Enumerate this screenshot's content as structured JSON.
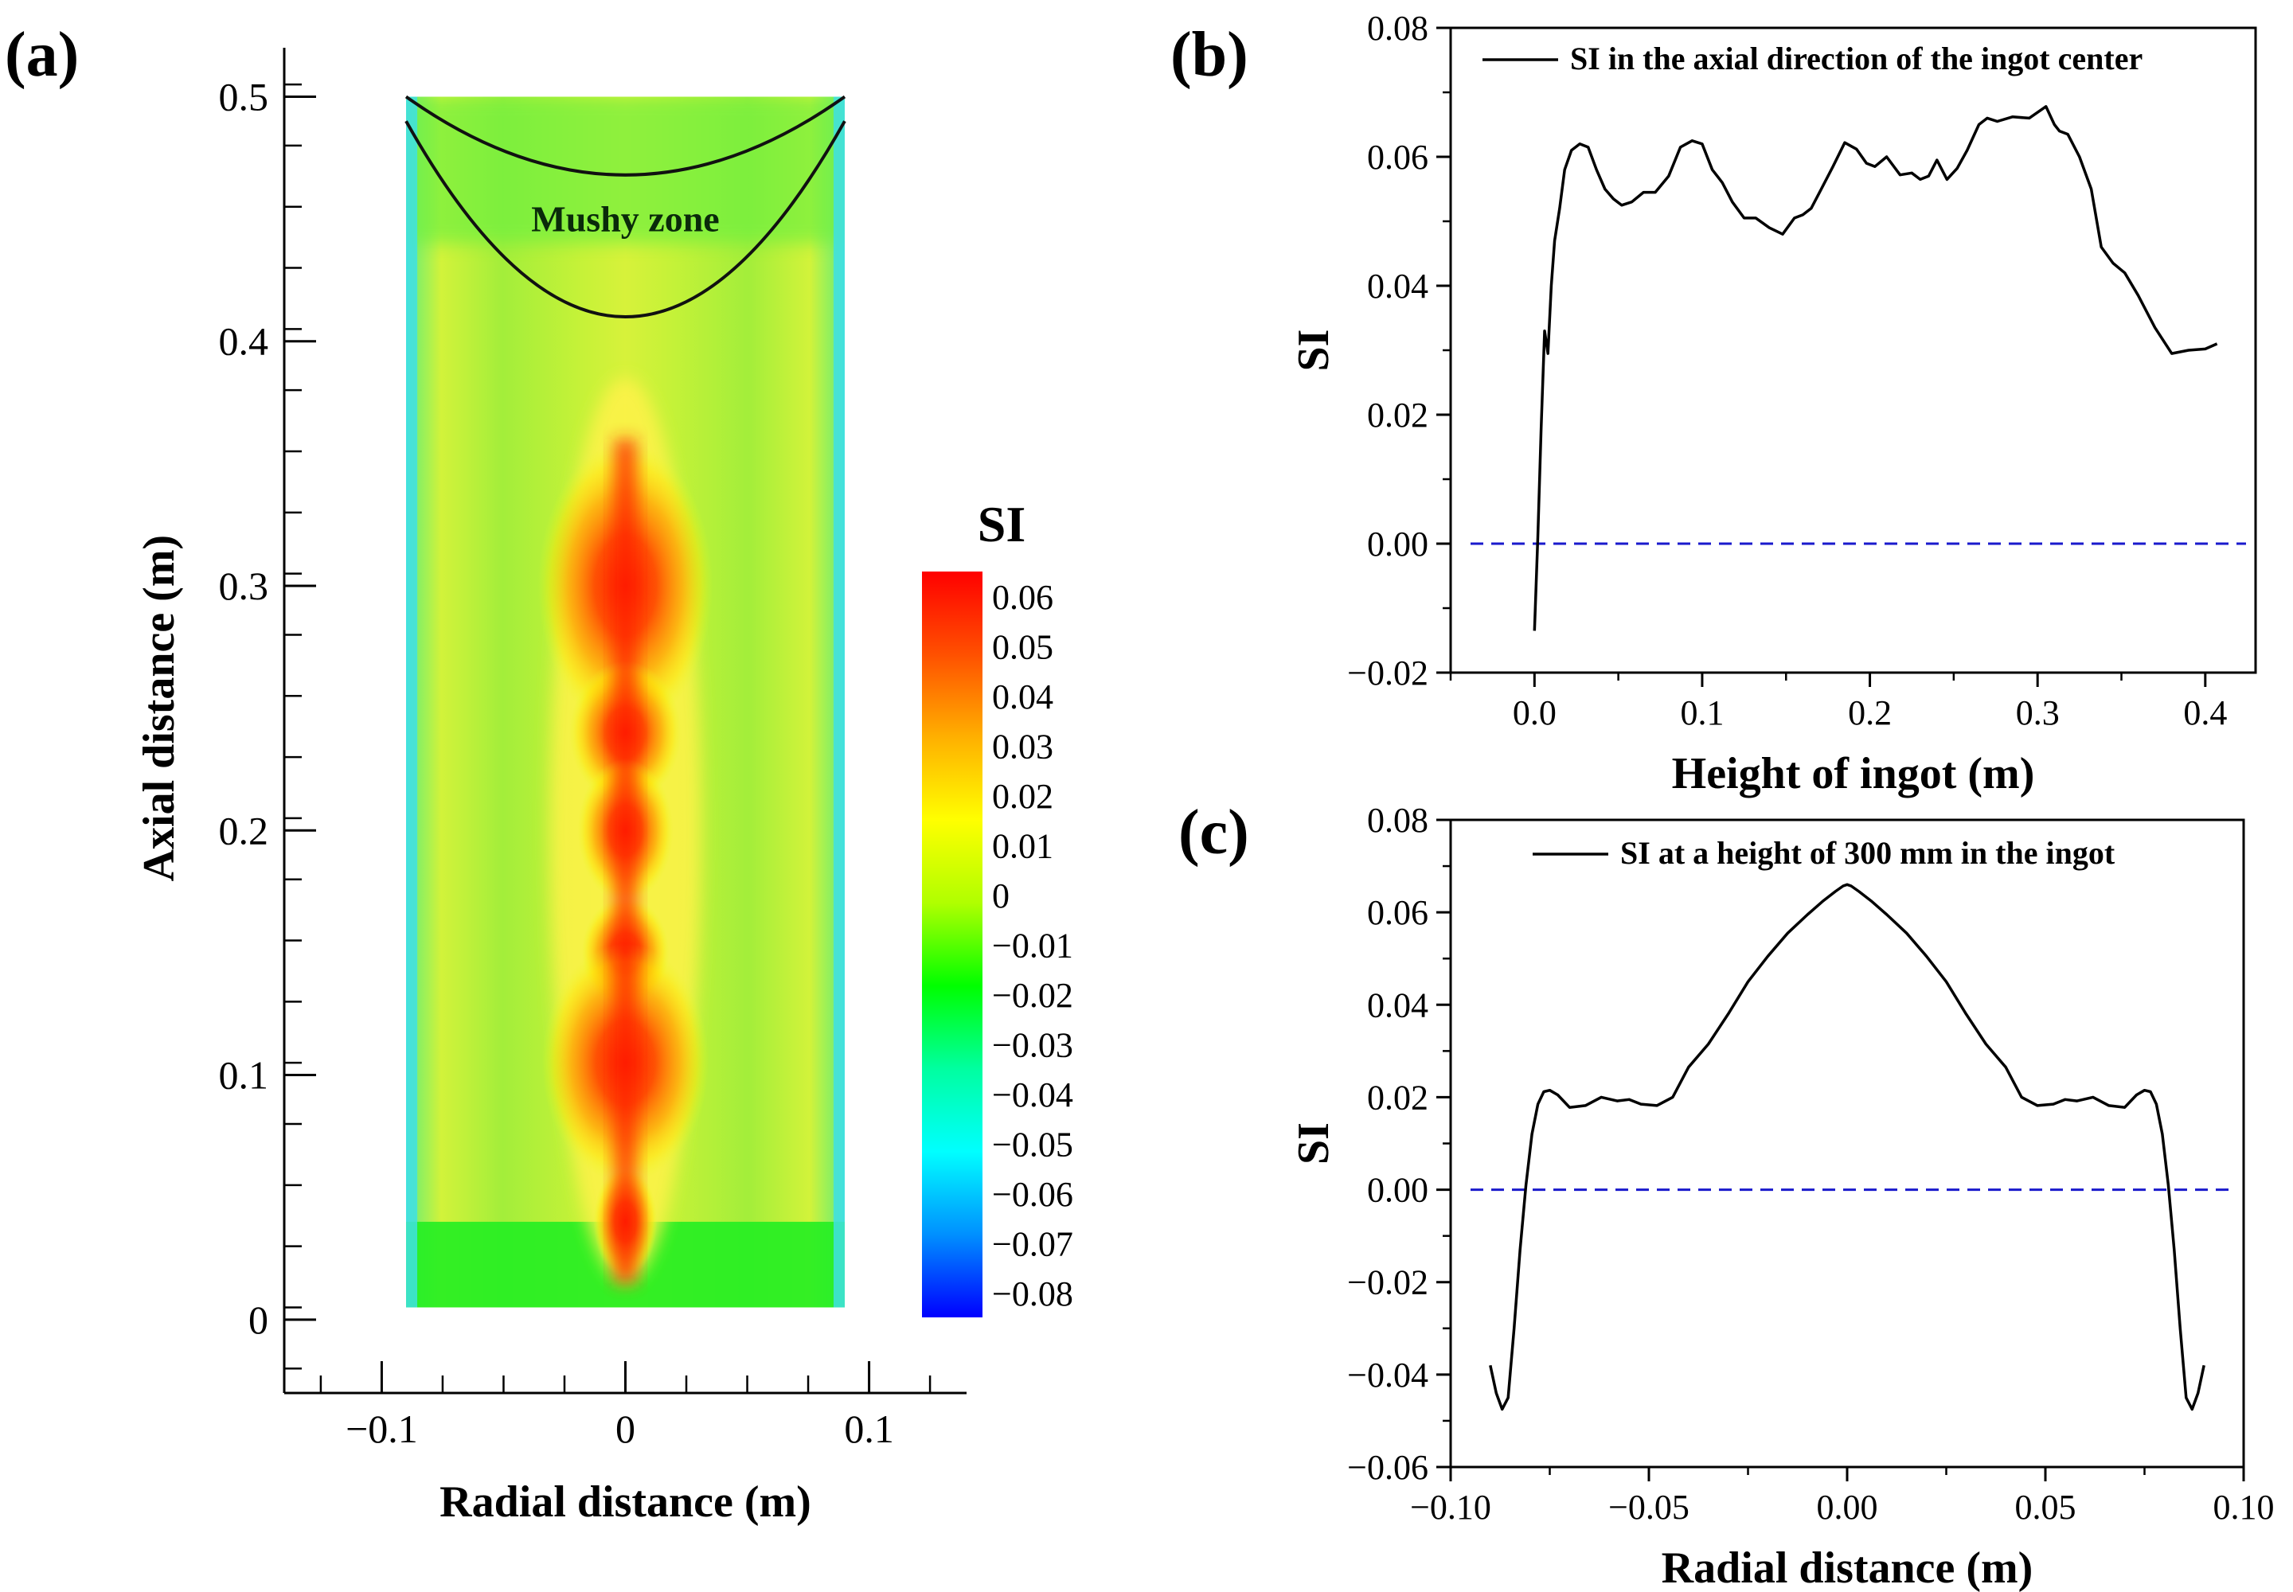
{
  "panels": {
    "a": {
      "label": "(a)"
    },
    "b": {
      "label": "(b)"
    },
    "c": {
      "label": "(c)"
    }
  },
  "chart_data": [
    {
      "id": "a",
      "type": "heatmap",
      "title": "",
      "xlabel": "Radial distance (m)",
      "ylabel": "Axial distance (m)",
      "xlim": [
        -0.14,
        0.14
      ],
      "ylim": [
        -0.03,
        0.52
      ],
      "xticks": [
        "−0.1",
        "0",
        "0.1"
      ],
      "xtick_values": [
        -0.1,
        0,
        0.1
      ],
      "yticks": [
        "0",
        "0.1",
        "0.2",
        "0.3",
        "0.4",
        "0.5"
      ],
      "ytick_values": [
        0,
        0.1,
        0.2,
        0.3,
        0.4,
        0.5
      ],
      "domain": {
        "x": [
          -0.09,
          0.09
        ],
        "y": [
          0.005,
          0.5
        ]
      },
      "colorbar": {
        "title": "SI",
        "range": [
          -0.085,
          0.065
        ],
        "tick_labels": [
          "0.06",
          "0.05",
          "0.04",
          "0.03",
          "0.02",
          "0.01",
          "0",
          "−0.01",
          "−0.02",
          "−0.03",
          "−0.04",
          "−0.05",
          "−0.06",
          "−0.07",
          "−0.08"
        ],
        "tick_values": [
          0.06,
          0.05,
          0.04,
          0.03,
          0.02,
          0.01,
          0,
          -0.01,
          -0.02,
          -0.03,
          -0.04,
          -0.05,
          -0.06,
          -0.07,
          -0.08
        ],
        "colors": [
          "#0000ff",
          "#0090ff",
          "#00ffff",
          "#00ffa0",
          "#00ff00",
          "#b0ff00",
          "#ffff00",
          "#ffb000",
          "#ff5000",
          "#ff0000"
        ]
      },
      "annotation": "Mushy zone",
      "liquidus_curve": {
        "edge_y": 0.5,
        "center_y": 0.468
      },
      "solidus_curve": {
        "edge_y": 0.49,
        "center_y": 0.41
      }
    },
    {
      "id": "b",
      "type": "line",
      "title": "",
      "xlabel": "Height of ingot (m)",
      "ylabel": "SI",
      "xlim": [
        -0.05,
        0.43
      ],
      "ylim": [
        -0.02,
        0.08
      ],
      "xticks": [
        "0.0",
        "0.1",
        "0.2",
        "0.3",
        "0.4"
      ],
      "xtick_values": [
        0,
        0.1,
        0.2,
        0.3,
        0.4
      ],
      "yticks": [
        "−0.02",
        "0.00",
        "0.02",
        "0.04",
        "0.06",
        "0.08"
      ],
      "ytick_values": [
        -0.02,
        0,
        0.02,
        0.04,
        0.06,
        0.08
      ],
      "reference_line": {
        "y": 0,
        "style": "dashed",
        "color": "#1a1acc"
      },
      "series": [
        {
          "name": "SI in the axial direction of the ingot center",
          "color": "#000000",
          "x": [
            0,
            0.002,
            0.004,
            0.006,
            0.008,
            0.01,
            0.012,
            0.015,
            0.018,
            0.022,
            0.027,
            0.032,
            0.037,
            0.042,
            0.047,
            0.052,
            0.058,
            0.065,
            0.072,
            0.08,
            0.087,
            0.094,
            0.1,
            0.106,
            0.112,
            0.118,
            0.125,
            0.132,
            0.14,
            0.148,
            0.155,
            0.16,
            0.165,
            0.17,
            0.178,
            0.185,
            0.192,
            0.198,
            0.203,
            0.21,
            0.218,
            0.225,
            0.23,
            0.235,
            0.24,
            0.246,
            0.252,
            0.258,
            0.265,
            0.27,
            0.276,
            0.285,
            0.295,
            0.305,
            0.31,
            0.313,
            0.318,
            0.325,
            0.332,
            0.338,
            0.345,
            0.352,
            0.36,
            0.37,
            0.38,
            0.39,
            0.4,
            0.407
          ],
          "values": [
            -0.0135,
            0.001,
            0.018,
            0.033,
            0.0295,
            0.04,
            0.047,
            0.052,
            0.058,
            0.061,
            0.062,
            0.0615,
            0.058,
            0.055,
            0.0535,
            0.0525,
            0.053,
            0.0545,
            0.0545,
            0.057,
            0.0615,
            0.0625,
            0.062,
            0.058,
            0.056,
            0.053,
            0.0505,
            0.0505,
            0.049,
            0.048,
            0.0505,
            0.051,
            0.052,
            0.0545,
            0.0585,
            0.0622,
            0.0612,
            0.059,
            0.0585,
            0.06,
            0.0572,
            0.0575,
            0.0565,
            0.057,
            0.0595,
            0.0565,
            0.0582,
            0.061,
            0.065,
            0.066,
            0.0655,
            0.0662,
            0.066,
            0.0678,
            0.065,
            0.064,
            0.0635,
            0.06,
            0.055,
            0.046,
            0.0435,
            0.042,
            0.0385,
            0.0335,
            0.0295,
            0.03,
            0.0302,
            0.031
          ]
        }
      ]
    },
    {
      "id": "c",
      "type": "line",
      "title": "",
      "xlabel": "Radial distance (m)",
      "ylabel": "SI",
      "xlim": [
        -0.1,
        0.1
      ],
      "ylim": [
        -0.06,
        0.08
      ],
      "xticks": [
        "−0.10",
        "−0.05",
        "0.00",
        "0.05",
        "0.10"
      ],
      "xtick_values": [
        -0.1,
        -0.05,
        0,
        0.05,
        0.1
      ],
      "yticks": [
        "−0.06",
        "−0.04",
        "−0.02",
        "0.00",
        "0.02",
        "0.04",
        "0.06",
        "0.08"
      ],
      "ytick_values": [
        -0.06,
        -0.04,
        -0.02,
        0,
        0.02,
        0.04,
        0.06,
        0.08
      ],
      "reference_line": {
        "y": 0,
        "style": "dashed",
        "color": "#1a1acc"
      },
      "series": [
        {
          "name": "SI at a height of 300 mm in the ingot",
          "color": "#000000",
          "x": [
            -0.09,
            -0.0885,
            -0.087,
            -0.0855,
            -0.084,
            -0.0825,
            -0.081,
            -0.0795,
            -0.078,
            -0.0765,
            -0.075,
            -0.073,
            -0.07,
            -0.066,
            -0.062,
            -0.058,
            -0.055,
            -0.052,
            -0.048,
            -0.044,
            -0.04,
            -0.035,
            -0.03,
            -0.025,
            -0.02,
            -0.015,
            -0.01,
            -0.006,
            -0.003,
            -0.001,
            0,
            0.001,
            0.003,
            0.006,
            0.01,
            0.015,
            0.02,
            0.025,
            0.03,
            0.035,
            0.04,
            0.044,
            0.048,
            0.052,
            0.055,
            0.058,
            0.062,
            0.066,
            0.07,
            0.073,
            0.075,
            0.0765,
            0.078,
            0.0795,
            0.081,
            0.0825,
            0.084,
            0.0855,
            0.087,
            0.0885,
            0.09
          ],
          "values": [
            -0.038,
            -0.044,
            -0.0475,
            -0.045,
            -0.03,
            -0.013,
            0.001,
            0.012,
            0.0185,
            0.0212,
            0.0215,
            0.0205,
            0.0178,
            0.0182,
            0.02,
            0.0192,
            0.0195,
            0.0185,
            0.0182,
            0.02,
            0.0265,
            0.0315,
            0.038,
            0.045,
            0.0505,
            0.0555,
            0.0595,
            0.0625,
            0.0645,
            0.0657,
            0.066,
            0.0657,
            0.0645,
            0.0625,
            0.0595,
            0.0555,
            0.0505,
            0.045,
            0.038,
            0.0315,
            0.0265,
            0.02,
            0.0182,
            0.0185,
            0.0195,
            0.0192,
            0.02,
            0.0182,
            0.0178,
            0.0205,
            0.0215,
            0.0212,
            0.0185,
            0.012,
            0.001,
            -0.013,
            -0.03,
            -0.045,
            -0.0475,
            -0.044,
            -0.038
          ]
        }
      ]
    }
  ]
}
